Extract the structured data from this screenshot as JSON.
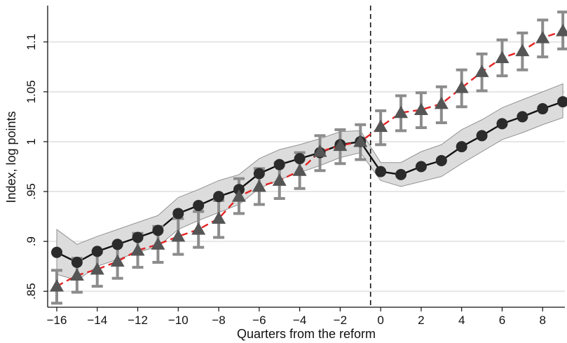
{
  "chart_data": {
    "type": "line",
    "xlabel": "Quarters from the reform",
    "ylabel": "Index, log points",
    "xlim": [
      -16.45,
      9.1
    ],
    "ylim": [
      0.834,
      1.135
    ],
    "x_ticks": [
      -16,
      -14,
      -12,
      -10,
      -8,
      -6,
      -4,
      -2,
      0,
      2,
      4,
      6,
      8
    ],
    "x_tick_labels": [
      "−16",
      "−14",
      "−12",
      "−10",
      "−8",
      "−6",
      "−4",
      "−2",
      "0",
      "2",
      "4",
      "6",
      "8"
    ],
    "y_ticks": [
      0.85,
      0.9,
      0.95,
      1.0,
      1.05,
      1.1
    ],
    "y_tick_labels": [
      ".85",
      ".9",
      ".95",
      "1",
      "1.05",
      "1.1"
    ],
    "grid": true,
    "reform_line_x": -0.5,
    "x": [
      -16,
      -15,
      -14,
      -13,
      -12,
      -11,
      -10,
      -9,
      -8,
      -7,
      -6,
      -5,
      -4,
      -3,
      -2,
      -1,
      0,
      1,
      2,
      3,
      4,
      5,
      6,
      7,
      8,
      9
    ],
    "series": [
      {
        "marker": "circle",
        "line_style": "solid",
        "color": "#111111",
        "marker_color": "#2b2b2b",
        "values": [
          0.889,
          0.879,
          0.89,
          0.897,
          0.904,
          0.911,
          0.928,
          0.936,
          0.945,
          0.952,
          0.968,
          0.977,
          0.983,
          0.989,
          0.997,
          1.0,
          0.97,
          0.967,
          0.975,
          0.981,
          0.995,
          1.006,
          1.018,
          1.025,
          1.033,
          1.04
        ],
        "ci_lower": [
          0.867,
          0.861,
          0.875,
          0.882,
          0.889,
          0.895,
          0.912,
          0.921,
          0.929,
          0.937,
          0.953,
          0.962,
          0.969,
          0.976,
          0.984,
          0.989,
          0.961,
          0.955,
          0.96,
          0.965,
          0.978,
          0.99,
          1.002,
          1.009,
          1.017,
          1.024
        ],
        "ci_upper": [
          0.912,
          0.897,
          0.905,
          0.912,
          0.919,
          0.926,
          0.944,
          0.952,
          0.961,
          0.967,
          0.983,
          0.992,
          0.997,
          1.003,
          1.01,
          1.011,
          0.979,
          0.979,
          0.99,
          0.997,
          1.012,
          1.022,
          1.034,
          1.042,
          1.05,
          1.058
        ],
        "ci_fill": "#dcdcdc",
        "ci_edge": "#888888"
      },
      {
        "marker": "triangle",
        "line_style": "dashed",
        "color": "#e32222",
        "marker_color": "#555555",
        "values": [
          0.855,
          0.866,
          0.872,
          0.88,
          0.891,
          0.897,
          0.905,
          0.912,
          0.923,
          0.945,
          0.955,
          0.961,
          0.971,
          0.99,
          0.996,
          1.0,
          1.015,
          1.029,
          1.032,
          1.038,
          1.054,
          1.07,
          1.084,
          1.091,
          1.104,
          1.111
        ],
        "err_lower": [
          0.838,
          0.849,
          0.855,
          0.863,
          0.874,
          0.879,
          0.887,
          0.894,
          0.904,
          0.928,
          0.937,
          0.943,
          0.953,
          0.971,
          0.978,
          0.982,
          0.997,
          1.011,
          1.014,
          1.019,
          1.035,
          1.051,
          1.066,
          1.072,
          1.085,
          1.093
        ],
        "err_upper": [
          0.871,
          0.883,
          0.889,
          0.897,
          0.908,
          0.915,
          0.923,
          0.93,
          0.941,
          0.963,
          0.973,
          0.979,
          0.989,
          1.006,
          1.012,
          1.017,
          1.031,
          1.046,
          1.049,
          1.055,
          1.072,
          1.088,
          1.102,
          1.109,
          1.122,
          1.13
        ],
        "err_color": "#8c8c8c"
      }
    ]
  }
}
